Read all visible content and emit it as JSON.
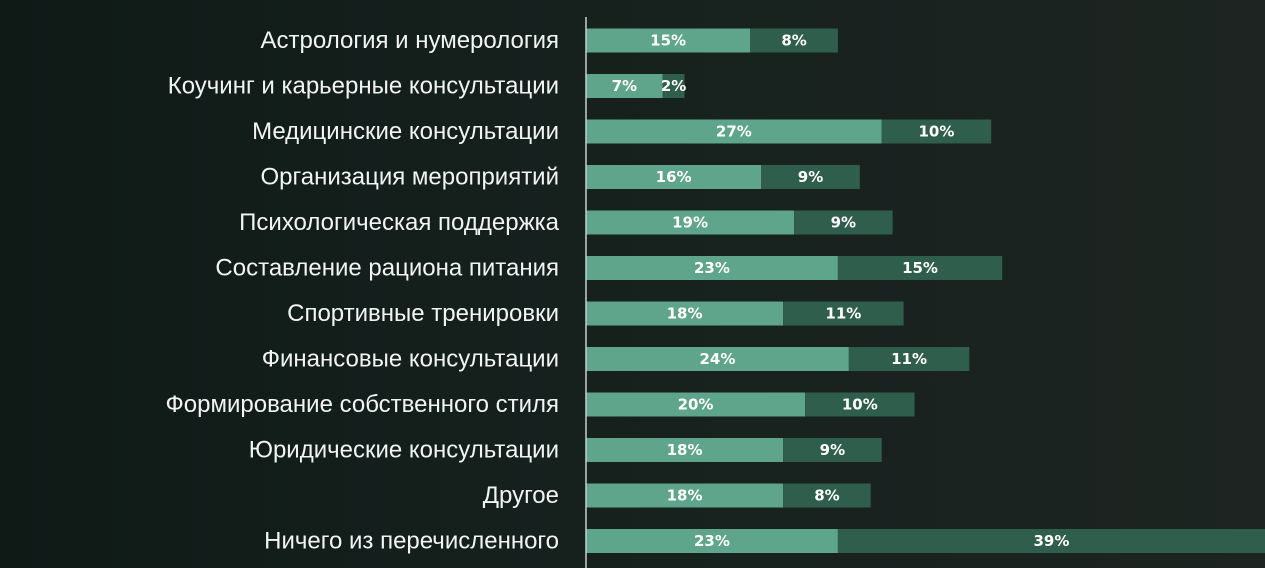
{
  "chart_data": {
    "type": "bar",
    "orientation": "horizontal",
    "stacked": true,
    "categories": [
      "Астрология и нумерология",
      "Коучинг и карьерные консультации",
      "Медицинские консультации",
      "Организация мероприятий",
      "Психологическая поддержка",
      "Составление рациона питания",
      "Спортивные тренировки",
      "Финансовые консультации",
      "Формирование собственного стиля",
      "Юридические консультации",
      "Другое",
      "Ничего из перечисленного"
    ],
    "series": [
      {
        "values": [
          15,
          7,
          27,
          16,
          19,
          23,
          18,
          24,
          20,
          18,
          18,
          23
        ],
        "labels": [
          "15%",
          "7%",
          "27%",
          "16%",
          "19%",
          "23%",
          "18%",
          "24%",
          "20%",
          "18%",
          "18%",
          "23%"
        ],
        "color": "#5ea58b"
      },
      {
        "values": [
          8,
          2,
          10,
          9,
          9,
          15,
          11,
          11,
          10,
          9,
          8,
          39
        ],
        "labels": [
          "8%",
          "2%",
          "10%",
          "9%",
          "9%",
          "15%",
          "11%",
          "11%",
          "10%",
          "9%",
          "8%",
          "39%"
        ],
        "color": "#2f5e4c"
      }
    ],
    "xlim": [
      0,
      62
    ],
    "grid": false,
    "legend": "none",
    "axis_color": "#c9cfcc",
    "label_color": "#f2f4f3"
  }
}
